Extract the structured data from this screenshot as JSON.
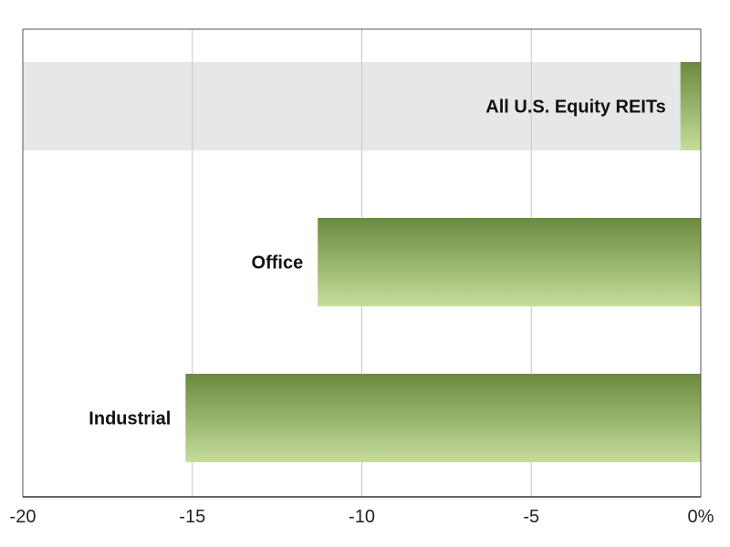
{
  "chart_data": {
    "type": "bar",
    "orientation": "horizontal",
    "title": "",
    "xlabel": "",
    "ylabel": "",
    "xlim": [
      -20,
      0
    ],
    "x_ticks": [
      -20,
      -15,
      -10,
      -5,
      0
    ],
    "x_tick_labels": [
      "-20",
      "-15",
      "-10",
      "-5",
      "0%"
    ],
    "grid": "vertical",
    "categories": [
      "All U.S. Equity REITs",
      "Office",
      "Industrial"
    ],
    "values": [
      -0.6,
      -11.3,
      -15.2
    ],
    "highlighted_category": "All U.S. Equity REITs",
    "colors": {
      "bar_top": "#6a8a3e",
      "bar_bottom": "#c6dd9a",
      "highlight_band": "#e6e7e8",
      "gridline": "#c8c8c8",
      "axis": "#555555"
    }
  }
}
